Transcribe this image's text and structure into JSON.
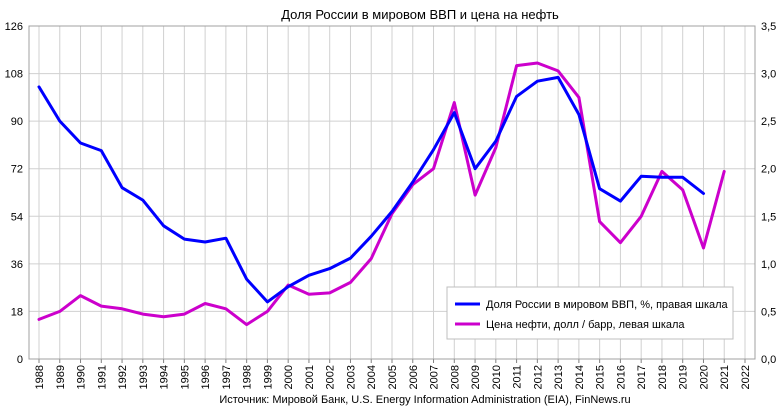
{
  "chart_data": {
    "type": "line",
    "title": "Доля России в мировом ВВП и цена на нефть",
    "source": "Источник: Мировой Банк, U.S. Energy Information Administration (EIA), FinNews.ru",
    "x": [
      "1988",
      "1989",
      "1990",
      "1991",
      "1992",
      "1993",
      "1994",
      "1995",
      "1996",
      "1997",
      "1998",
      "1999",
      "2000",
      "2001",
      "2002",
      "2003",
      "2004",
      "2005",
      "2006",
      "2007",
      "2008",
      "2009",
      "2010",
      "2011",
      "2012",
      "2013",
      "2014",
      "2015",
      "2016",
      "2017",
      "2018",
      "2019",
      "2020",
      "2021",
      "2022"
    ],
    "left_axis": {
      "ticks": [
        "0",
        "18",
        "36",
        "54",
        "72",
        "90",
        "108",
        "126"
      ],
      "min": 0,
      "max": 126
    },
    "right_axis": {
      "ticks": [
        "0,0",
        "0,5",
        "1,0",
        "1,5",
        "2,0",
        "2,5",
        "3,0",
        "3,5"
      ],
      "min": 0,
      "max": 3.5
    },
    "grid": true,
    "legend_position": "lower-right",
    "series": [
      {
        "name": "Доля России в мировом ВВП, %, правая шкала",
        "axis": "right",
        "color": "#0000ff",
        "values": [
          2.86,
          2.5,
          2.27,
          2.19,
          1.8,
          1.67,
          1.4,
          1.26,
          1.23,
          1.27,
          0.84,
          0.6,
          0.76,
          0.88,
          0.95,
          1.06,
          1.29,
          1.55,
          1.86,
          2.2,
          2.59,
          2.0,
          2.29,
          2.76,
          2.92,
          2.96,
          2.57,
          1.79,
          1.66,
          1.92,
          1.91,
          1.91,
          1.74,
          null,
          null
        ]
      },
      {
        "name": "Цена нефти, долл / барр, левая шкала",
        "axis": "left",
        "color": "#cc00cc",
        "values": [
          15,
          18,
          24,
          20,
          19,
          17,
          16,
          17,
          21,
          19,
          13,
          18,
          28,
          24.5,
          25,
          29,
          38,
          55,
          66,
          72,
          97,
          62,
          80,
          111,
          112,
          109,
          99,
          52,
          44,
          54,
          71,
          64,
          42,
          71,
          null
        ]
      }
    ]
  }
}
